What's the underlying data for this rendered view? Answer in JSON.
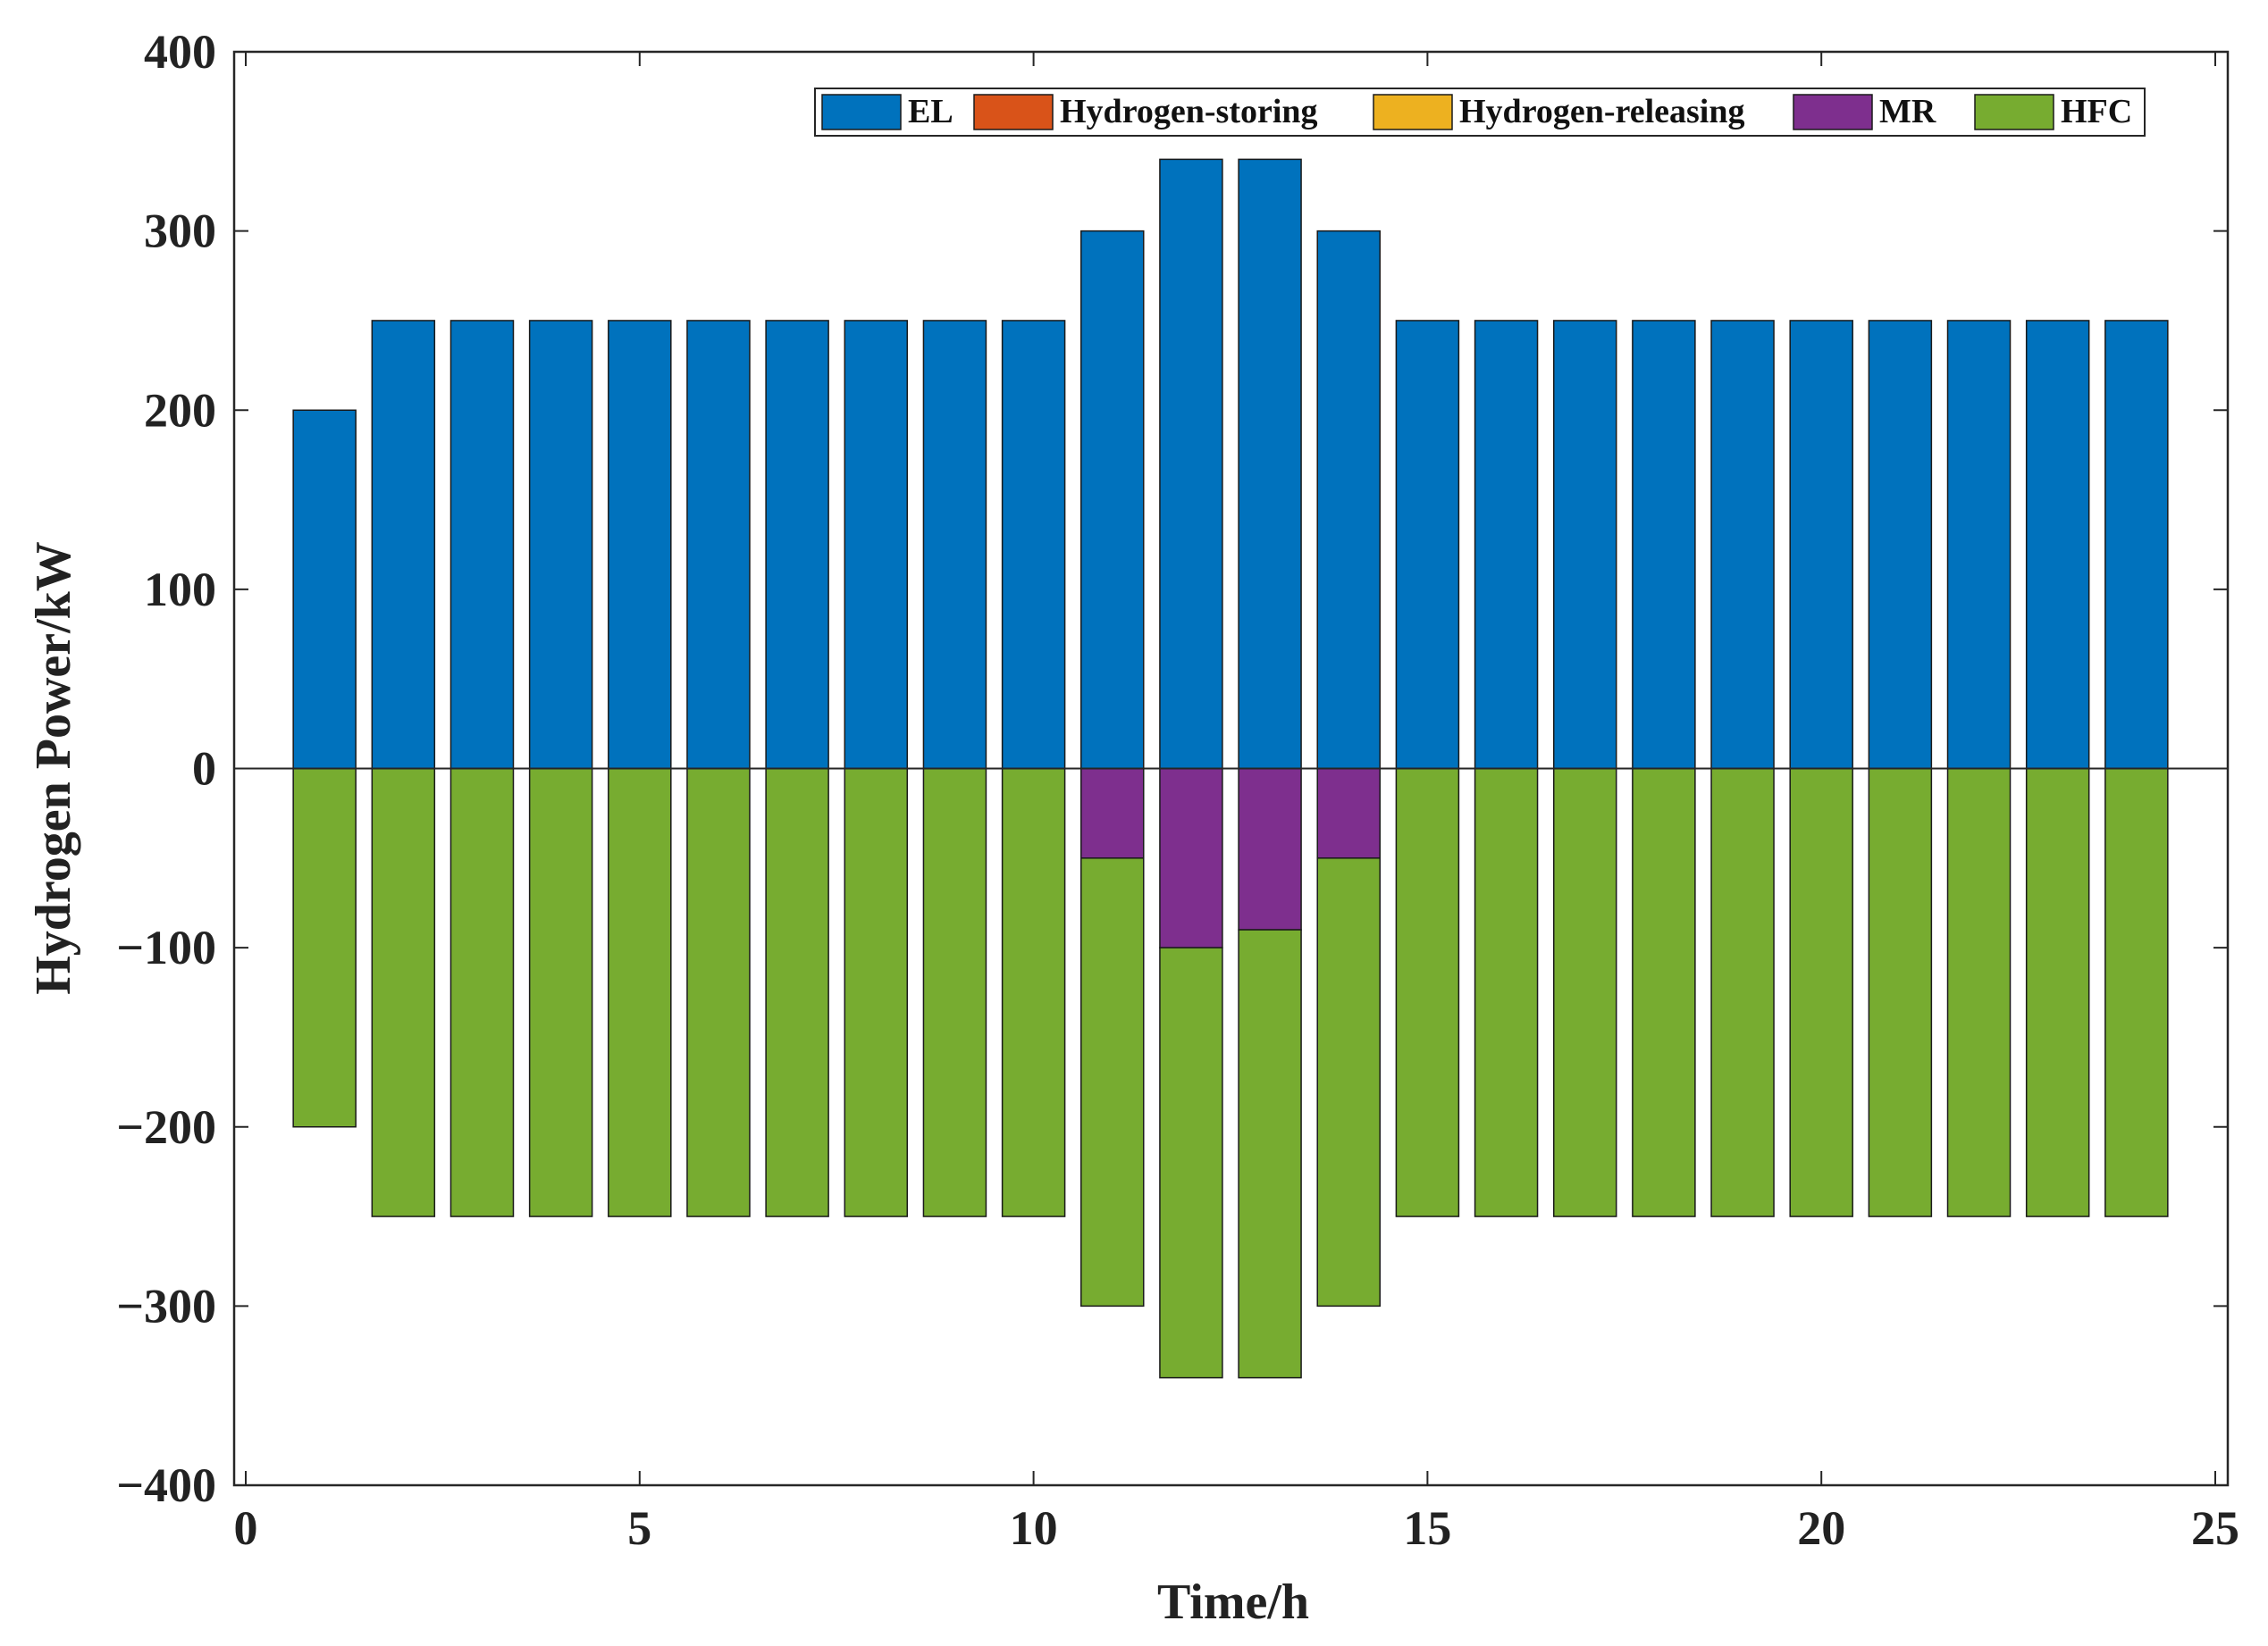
{
  "chart_data": {
    "type": "bar",
    "stacked": true,
    "title": "",
    "xlabel": "Time/h",
    "ylabel": "Hydrogen Power/kW",
    "xlim": [
      0,
      25
    ],
    "ylim": [
      -400,
      400
    ],
    "xticks": [
      0,
      5,
      10,
      15,
      20,
      25
    ],
    "xtick_labels": [
      "0",
      "5",
      "10",
      "15",
      "20",
      "25"
    ],
    "yticks": [
      400,
      300,
      200,
      100,
      0,
      -100,
      -200,
      -300,
      -400
    ],
    "ytick_labels": [
      "400",
      "300",
      "200",
      "100",
      "0",
      "−100",
      "−200",
      "−300",
      "−400"
    ],
    "legend_position": "top-right",
    "x": [
      1,
      2,
      3,
      4,
      5,
      6,
      7,
      8,
      9,
      10,
      11,
      12,
      13,
      14,
      15,
      16,
      17,
      18,
      19,
      20,
      21,
      22,
      23,
      24
    ],
    "series": [
      {
        "name": "EL",
        "color": "#0072BD",
        "values": [
          200,
          250,
          250,
          250,
          250,
          250,
          250,
          250,
          250,
          250,
          300,
          340,
          340,
          300,
          250,
          250,
          250,
          250,
          250,
          250,
          250,
          250,
          250,
          250
        ]
      },
      {
        "name": "Hydrogen-storing",
        "color": "#D95319",
        "values": [
          0,
          0,
          0,
          0,
          0,
          0,
          0,
          0,
          0,
          0,
          0,
          0,
          0,
          0,
          0,
          0,
          0,
          0,
          0,
          0,
          0,
          0,
          0,
          0
        ]
      },
      {
        "name": "Hydrogen-releasing",
        "color": "#EDB120",
        "values": [
          0,
          0,
          0,
          0,
          0,
          0,
          0,
          0,
          0,
          0,
          0,
          0,
          0,
          0,
          0,
          0,
          0,
          0,
          0,
          0,
          0,
          0,
          0,
          0
        ]
      },
      {
        "name": "MR",
        "color": "#7E2F8E",
        "values": [
          0,
          0,
          0,
          0,
          0,
          0,
          0,
          0,
          0,
          0,
          -50,
          -100,
          -90,
          -50,
          0,
          0,
          0,
          0,
          0,
          0,
          0,
          0,
          0,
          0
        ]
      },
      {
        "name": "HFC",
        "color": "#77AC30",
        "values": [
          -200,
          -250,
          -250,
          -250,
          -250,
          -250,
          -250,
          -250,
          -250,
          -250,
          -250,
          -240,
          -250,
          -250,
          -250,
          -250,
          -250,
          -250,
          -250,
          -250,
          -250,
          -250,
          -250,
          -250
        ]
      }
    ]
  }
}
